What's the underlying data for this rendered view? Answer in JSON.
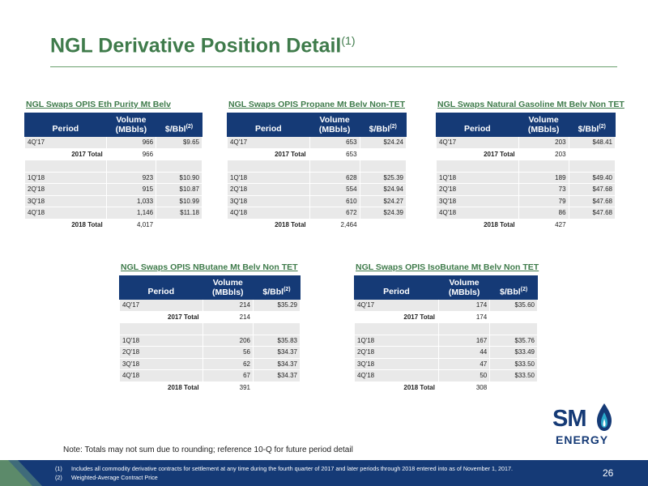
{
  "title": {
    "main": "NGL Derivative Position Detail",
    "sup": "(1)"
  },
  "headers": {
    "period": "Period",
    "volume_l1": "Volume",
    "volume_l2": "(MBbls)",
    "price": "$/Bbl",
    "price_sup": "(2)"
  },
  "tables": [
    {
      "name": "NGL Swaps OPIS Eth Purity Mt Belv",
      "rows": [
        {
          "type": "data",
          "period": "4Q'17",
          "volume": "966",
          "price": "$9.65"
        },
        {
          "type": "total",
          "period": "2017 Total",
          "volume": "966",
          "price": ""
        },
        {
          "type": "blank",
          "period": "",
          "volume": "",
          "price": ""
        },
        {
          "type": "data",
          "period": "1Q'18",
          "volume": "923",
          "price": "$10.90"
        },
        {
          "type": "data",
          "period": "2Q'18",
          "volume": "915",
          "price": "$10.87"
        },
        {
          "type": "data",
          "period": "3Q'18",
          "volume": "1,033",
          "price": "$10.99"
        },
        {
          "type": "data",
          "period": "4Q'18",
          "volume": "1,146",
          "price": "$11.18"
        },
        {
          "type": "total",
          "period": "2018 Total",
          "volume": "4,017",
          "price": ""
        }
      ]
    },
    {
      "name": "NGL Swaps OPIS Propane Mt Belv Non-TET",
      "rows": [
        {
          "type": "data",
          "period": "4Q'17",
          "volume": "653",
          "price": "$24.24"
        },
        {
          "type": "total",
          "period": "2017 Total",
          "volume": "653",
          "price": ""
        },
        {
          "type": "blank",
          "period": "",
          "volume": "",
          "price": ""
        },
        {
          "type": "data",
          "period": "1Q'18",
          "volume": "628",
          "price": "$25.39"
        },
        {
          "type": "data",
          "period": "2Q'18",
          "volume": "554",
          "price": "$24.94"
        },
        {
          "type": "data",
          "period": "3Q'18",
          "volume": "610",
          "price": "$24.27"
        },
        {
          "type": "data",
          "period": "4Q'18",
          "volume": "672",
          "price": "$24.39"
        },
        {
          "type": "total",
          "period": "2018 Total",
          "volume": "2,464",
          "price": ""
        }
      ]
    },
    {
      "name": "NGL Swaps Natural Gasoline Mt Belv Non TET",
      "rows": [
        {
          "type": "data",
          "period": "4Q'17",
          "volume": "203",
          "price": "$48.41"
        },
        {
          "type": "total",
          "period": "2017 Total",
          "volume": "203",
          "price": ""
        },
        {
          "type": "blank",
          "period": "",
          "volume": "",
          "price": ""
        },
        {
          "type": "data",
          "period": "1Q'18",
          "volume": "189",
          "price": "$49.40"
        },
        {
          "type": "data",
          "period": "2Q'18",
          "volume": "73",
          "price": "$47.68"
        },
        {
          "type": "data",
          "period": "3Q'18",
          "volume": "79",
          "price": "$47.68"
        },
        {
          "type": "data",
          "period": "4Q'18",
          "volume": "86",
          "price": "$47.68"
        },
        {
          "type": "total",
          "period": "2018 Total",
          "volume": "427",
          "price": ""
        }
      ]
    },
    {
      "name": "NGL Swaps OPIS NButane Mt Belv Non TET",
      "rows": [
        {
          "type": "data",
          "period": "4Q'17",
          "volume": "214",
          "price": "$35.29"
        },
        {
          "type": "total",
          "period": "2017 Total",
          "volume": "214",
          "price": ""
        },
        {
          "type": "blank",
          "period": "",
          "volume": "",
          "price": ""
        },
        {
          "type": "data",
          "period": "1Q'18",
          "volume": "206",
          "price": "$35.83"
        },
        {
          "type": "data",
          "period": "2Q'18",
          "volume": "56",
          "price": "$34.37"
        },
        {
          "type": "data",
          "period": "3Q'18",
          "volume": "62",
          "price": "$34.37"
        },
        {
          "type": "data",
          "period": "4Q'18",
          "volume": "67",
          "price": "$34.37"
        },
        {
          "type": "total",
          "period": "2018 Total",
          "volume": "391",
          "price": ""
        }
      ]
    },
    {
      "name": "NGL Swaps OPIS IsoButane Mt Belv Non TET",
      "rows": [
        {
          "type": "data",
          "period": "4Q'17",
          "volume": "174",
          "price": "$35.60"
        },
        {
          "type": "total",
          "period": "2017 Total",
          "volume": "174",
          "price": ""
        },
        {
          "type": "blank",
          "period": "",
          "volume": "",
          "price": ""
        },
        {
          "type": "data",
          "period": "1Q'18",
          "volume": "167",
          "price": "$35.76"
        },
        {
          "type": "data",
          "period": "2Q'18",
          "volume": "44",
          "price": "$33.49"
        },
        {
          "type": "data",
          "period": "3Q'18",
          "volume": "47",
          "price": "$33.50"
        },
        {
          "type": "data",
          "period": "4Q'18",
          "volume": "50",
          "price": "$33.50"
        },
        {
          "type": "total",
          "period": "2018 Total",
          "volume": "308",
          "price": ""
        }
      ]
    }
  ],
  "note": "Note: Totals may not sum due to rounding; reference 10-Q for future period detail",
  "footnotes": [
    {
      "num": "(1)",
      "text": "Includes all commodity derivative contracts for settlement at any time during the fourth quarter of 2017 and later periods through 2018 entered into as of November 1, 2017."
    },
    {
      "num": "(2)",
      "text": "Weighted-Average Contract Price"
    }
  ],
  "page_number": "26",
  "logo": {
    "line1": "SM",
    "line2": "ENERGY"
  },
  "colors": {
    "title_green": "#3f7b4b",
    "header_navy": "#153a76",
    "row_gray": "#e9e9e9",
    "footer_navy": "#153a76",
    "accent_teal": "#2aa7c9"
  }
}
